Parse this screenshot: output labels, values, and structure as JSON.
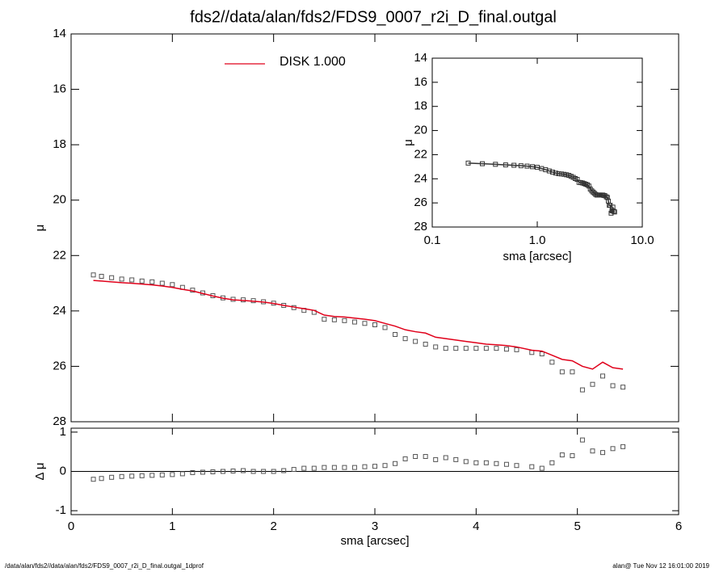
{
  "chart_data": [
    {
      "type": "profile",
      "title": "fds2//data/alan/fds2/FDS9_0007_r2i_D_final.outgal",
      "ylabel": "μ",
      "xlim": [
        0,
        6
      ],
      "xticks": [
        0,
        1,
        2,
        3,
        4,
        5,
        6
      ],
      "xtick_labels": false,
      "ylim": [
        14,
        28
      ],
      "yticks": [
        14,
        16,
        18,
        20,
        22,
        24,
        26,
        28
      ],
      "yinvert": true,
      "legend": "top-left",
      "x": [
        0.22,
        0.3,
        0.4,
        0.5,
        0.6,
        0.7,
        0.8,
        0.9,
        1.0,
        1.1,
        1.2,
        1.3,
        1.4,
        1.5,
        1.6,
        1.7,
        1.8,
        1.9,
        2.0,
        2.1,
        2.2,
        2.3,
        2.4,
        2.5,
        2.6,
        2.7,
        2.8,
        2.9,
        3.0,
        3.1,
        3.2,
        3.3,
        3.4,
        3.5,
        3.6,
        3.7,
        3.8,
        3.9,
        4.0,
        4.1,
        4.2,
        4.3,
        4.4,
        4.55,
        4.65,
        4.75,
        4.85,
        4.95,
        5.05,
        5.15,
        5.25,
        5.35,
        5.45
      ],
      "series": [
        {
          "color": "#555555",
          "marker": "square",
          "line": false,
          "values": [
            22.7,
            22.75,
            22.8,
            22.85,
            22.88,
            22.92,
            22.95,
            23.0,
            23.05,
            23.15,
            23.25,
            23.35,
            23.45,
            23.53,
            23.58,
            23.6,
            23.63,
            23.67,
            23.72,
            23.8,
            23.88,
            23.98,
            24.05,
            24.3,
            24.32,
            24.35,
            24.4,
            24.45,
            24.5,
            24.6,
            24.85,
            25.0,
            25.1,
            25.2,
            25.3,
            25.35,
            25.35,
            25.35,
            25.35,
            25.35,
            25.35,
            25.38,
            25.4,
            25.5,
            25.55,
            25.85,
            26.2,
            26.2,
            26.85,
            26.65,
            26.35,
            26.7,
            26.75
          ]
        },
        {
          "name": "DISK  1.000",
          "color": "#e0001a",
          "marker": "none",
          "line": true,
          "values": [
            22.9,
            22.92,
            22.95,
            22.98,
            23.0,
            23.03,
            23.06,
            23.1,
            23.15,
            23.22,
            23.28,
            23.37,
            23.46,
            23.54,
            23.6,
            23.62,
            23.65,
            23.68,
            23.73,
            23.8,
            23.86,
            23.92,
            23.98,
            24.15,
            24.2,
            24.22,
            24.26,
            24.3,
            24.35,
            24.45,
            24.55,
            24.68,
            24.75,
            24.8,
            24.95,
            25.0,
            25.05,
            25.1,
            25.15,
            25.2,
            25.22,
            25.25,
            25.3,
            25.42,
            25.45,
            25.6,
            25.75,
            25.8,
            26.0,
            26.1,
            25.85,
            26.05,
            26.1
          ]
        }
      ]
    },
    {
      "type": "profile",
      "ylabel": "μ",
      "xlabel": "sma [arcsec]",
      "xlog": true,
      "xlim": [
        0.1,
        10
      ],
      "xticks": [
        0.1,
        {
          "value": 1,
          "label": "1.0"
        },
        {
          "value": 10,
          "label": "10.0"
        }
      ],
      "ylim": [
        14,
        28
      ],
      "yticks": [
        14,
        16,
        18,
        20,
        22,
        24,
        26,
        28
      ],
      "yinvert": true,
      "x": [
        0.22,
        0.3,
        0.4,
        0.5,
        0.6,
        0.7,
        0.8,
        0.9,
        1.0,
        1.1,
        1.2,
        1.3,
        1.4,
        1.5,
        1.6,
        1.7,
        1.8,
        1.9,
        2.0,
        2.1,
        2.2,
        2.3,
        2.4,
        2.5,
        2.6,
        2.7,
        2.8,
        2.9,
        3.0,
        3.1,
        3.2,
        3.3,
        3.4,
        3.5,
        3.6,
        3.7,
        3.8,
        3.9,
        4.0,
        4.1,
        4.2,
        4.3,
        4.4,
        4.55,
        4.65,
        4.75,
        4.85,
        4.95,
        5.05,
        5.15,
        5.25,
        5.35,
        5.45
      ],
      "series": [
        {
          "color": "#333333",
          "marker": "square",
          "line": true,
          "values": [
            22.7,
            22.75,
            22.8,
            22.85,
            22.88,
            22.92,
            22.95,
            23.0,
            23.05,
            23.15,
            23.25,
            23.35,
            23.45,
            23.53,
            23.58,
            23.6,
            23.63,
            23.67,
            23.72,
            23.8,
            23.88,
            23.98,
            24.05,
            24.3,
            24.32,
            24.35,
            24.4,
            24.45,
            24.5,
            24.6,
            24.85,
            25.0,
            25.1,
            25.2,
            25.3,
            25.35,
            25.35,
            25.35,
            25.35,
            25.35,
            25.35,
            25.38,
            25.4,
            25.5,
            25.55,
            25.85,
            26.2,
            26.2,
            26.85,
            26.65,
            26.35,
            26.7,
            26.75
          ]
        }
      ]
    },
    {
      "type": "profile",
      "ylabel": "Δ μ",
      "xlabel": "sma [arcsec]",
      "xlim": [
        0,
        6
      ],
      "xticks": [
        0,
        1,
        2,
        3,
        4,
        5,
        6
      ],
      "ylim": [
        -1.1,
        1.1
      ],
      "yticks": [
        -1,
        0,
        1
      ],
      "hline": 0,
      "x": [
        0.22,
        0.3,
        0.4,
        0.5,
        0.6,
        0.7,
        0.8,
        0.9,
        1.0,
        1.1,
        1.2,
        1.3,
        1.4,
        1.5,
        1.6,
        1.7,
        1.8,
        1.9,
        2.0,
        2.1,
        2.2,
        2.3,
        2.4,
        2.5,
        2.6,
        2.7,
        2.8,
        2.9,
        3.0,
        3.1,
        3.2,
        3.3,
        3.4,
        3.5,
        3.6,
        3.7,
        3.8,
        3.9,
        4.0,
        4.1,
        4.2,
        4.3,
        4.4,
        4.55,
        4.65,
        4.75,
        4.85,
        4.95,
        5.05,
        5.15,
        5.25,
        5.35,
        5.45
      ],
      "series": [
        {
          "color": "#555555",
          "marker": "square",
          "line": false,
          "values": [
            -0.2,
            -0.18,
            -0.15,
            -0.13,
            -0.12,
            -0.11,
            -0.1,
            -0.09,
            -0.08,
            -0.06,
            -0.03,
            -0.02,
            -0.01,
            0,
            0.01,
            0.02,
            0,
            0,
            0,
            0.02,
            0.05,
            0.08,
            0.08,
            0.1,
            0.1,
            0.1,
            0.1,
            0.12,
            0.13,
            0.15,
            0.2,
            0.32,
            0.38,
            0.38,
            0.3,
            0.35,
            0.3,
            0.25,
            0.22,
            0.22,
            0.2,
            0.18,
            0.15,
            0.12,
            0.08,
            0.22,
            0.42,
            0.4,
            0.8,
            0.52,
            0.48,
            0.58,
            0.63
          ]
        }
      ]
    }
  ],
  "footer": {
    "left": "/data/alan/fds2//data/alan/fds2/FDS9_0007_r2i_D_final.outgal_1dprof",
    "right": "alan@  Tue Nov 12 16:01:00 2019"
  }
}
